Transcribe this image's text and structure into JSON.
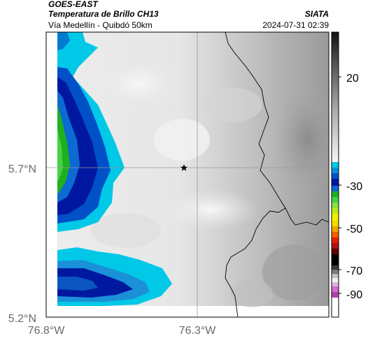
{
  "header": {
    "satellite": "GOES-EAST",
    "product": "Temperatura de Brillo CH13",
    "route": "Vía Medellín - Quibdó 50km",
    "organization": "SIATA",
    "timestamp": "2024-07-31 02:39"
  },
  "map": {
    "lat_ticks": [
      "5.7°N",
      "5.2°N"
    ],
    "lon_ticks": [
      "76.8°W",
      "76.3°W"
    ],
    "marker": "star-icon"
  },
  "colorbar": {
    "ticks": [
      "20",
      "-30",
      "-50",
      "-70",
      "-90"
    ],
    "colors": {
      "warm_light": "#f2f2f2",
      "warm_dark": "#1a1a1a",
      "cyan": "#00c8e6",
      "blue": "#0018a0",
      "green": "#1fb01f",
      "yellow": "#f0f000",
      "red": "#e02000",
      "black": "#000000",
      "magenta": "#c040c0"
    }
  }
}
